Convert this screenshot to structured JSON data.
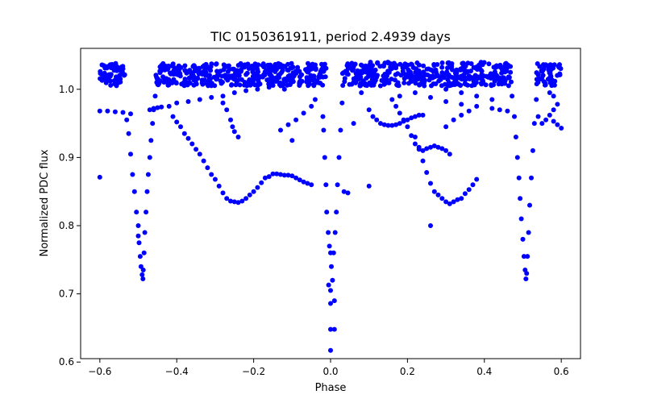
{
  "chart_data": {
    "type": "scatter",
    "title": "TIC 0150361911, period 2.4939 days",
    "xlabel": "Phase",
    "ylabel": "Normalized PDC flux",
    "xlim": [
      -0.65,
      0.65
    ],
    "ylim": [
      0.605,
      1.06
    ],
    "x_ticks": [
      -0.6,
      -0.4,
      -0.2,
      0.0,
      0.2,
      0.4,
      0.6
    ],
    "x_tick_labels": [
      "−0.6",
      "−0.4",
      "−0.2",
      "0.0",
      "0.2",
      "0.4",
      "0.6"
    ],
    "y_ticks": [
      0.6,
      0.7,
      0.8,
      0.9,
      1.0
    ],
    "y_tick_labels": [
      "0.6",
      "0.7",
      "0.8",
      "0.9",
      "1.0"
    ],
    "grid": false,
    "legend": "none",
    "marker_color": "#0000ff",
    "series": [
      {
        "values": [
          [
            -0.6,
            0.871
          ],
          [
            -0.6,
            0.968
          ],
          [
            -0.58,
            0.968
          ],
          [
            -0.56,
            0.967
          ],
          [
            -0.54,
            0.966
          ],
          [
            -0.52,
            0.964
          ],
          [
            -0.55,
            1.01
          ],
          [
            -0.58,
            1.02
          ],
          [
            -0.54,
            1.03
          ],
          [
            -0.59,
            1.035
          ],
          [
            -0.53,
            0.955
          ],
          [
            -0.525,
            0.935
          ],
          [
            -0.52,
            0.905
          ],
          [
            -0.515,
            0.875
          ],
          [
            -0.51,
            0.85
          ],
          [
            -0.505,
            0.82
          ],
          [
            -0.5,
            0.8
          ],
          [
            -0.5,
            0.785
          ],
          [
            -0.498,
            0.775
          ],
          [
            -0.495,
            0.755
          ],
          [
            -0.493,
            0.74
          ],
          [
            -0.49,
            0.728
          ],
          [
            -0.488,
            0.722
          ],
          [
            -0.487,
            0.735
          ],
          [
            -0.485,
            0.76
          ],
          [
            -0.483,
            0.79
          ],
          [
            -0.48,
            0.82
          ],
          [
            -0.477,
            0.85
          ],
          [
            -0.474,
            0.875
          ],
          [
            -0.47,
            0.9
          ],
          [
            -0.467,
            0.925
          ],
          [
            -0.463,
            0.95
          ],
          [
            -0.46,
            0.97
          ],
          [
            -0.456,
            0.99
          ],
          [
            -0.452,
            1.01
          ],
          [
            -0.47,
            0.97
          ],
          [
            -0.46,
            0.972
          ],
          [
            -0.45,
            0.973
          ],
          [
            -0.44,
            0.974
          ],
          [
            -0.42,
            0.975
          ],
          [
            -0.41,
            0.96
          ],
          [
            -0.4,
            0.952
          ],
          [
            -0.39,
            0.945
          ],
          [
            -0.38,
            0.935
          ],
          [
            -0.37,
            0.928
          ],
          [
            -0.36,
            0.92
          ],
          [
            -0.35,
            0.912
          ],
          [
            -0.34,
            0.905
          ],
          [
            -0.33,
            0.895
          ],
          [
            -0.32,
            0.885
          ],
          [
            -0.31,
            0.875
          ],
          [
            -0.3,
            0.868
          ],
          [
            -0.29,
            0.858
          ],
          [
            -0.28,
            0.848
          ],
          [
            -0.27,
            0.84
          ],
          [
            -0.26,
            0.836
          ],
          [
            -0.25,
            0.835
          ],
          [
            -0.24,
            0.834
          ],
          [
            -0.23,
            0.836
          ],
          [
            -0.22,
            0.84
          ],
          [
            -0.21,
            0.845
          ],
          [
            -0.2,
            0.85
          ],
          [
            -0.19,
            0.856
          ],
          [
            -0.18,
            0.863
          ],
          [
            -0.17,
            0.87
          ],
          [
            -0.16,
            0.872
          ],
          [
            -0.15,
            0.876
          ],
          [
            -0.14,
            0.876
          ],
          [
            -0.13,
            0.875
          ],
          [
            -0.12,
            0.874
          ],
          [
            -0.11,
            0.874
          ],
          [
            -0.1,
            0.873
          ],
          [
            -0.09,
            0.87
          ],
          [
            -0.08,
            0.867
          ],
          [
            -0.07,
            0.864
          ],
          [
            -0.06,
            0.862
          ],
          [
            -0.05,
            0.86
          ],
          [
            -0.4,
            0.98
          ],
          [
            -0.37,
            0.982
          ],
          [
            -0.34,
            0.985
          ],
          [
            -0.31,
            0.988
          ],
          [
            -0.28,
            0.99
          ],
          [
            -0.25,
            0.995
          ],
          [
            -0.22,
            0.998
          ],
          [
            -0.19,
            1.0
          ],
          [
            -0.16,
            1.003
          ],
          [
            -0.12,
            1.0
          ],
          [
            -0.28,
            0.98
          ],
          [
            -0.27,
            0.97
          ],
          [
            -0.26,
            0.955
          ],
          [
            -0.255,
            0.945
          ],
          [
            -0.25,
            0.938
          ],
          [
            -0.24,
            0.93
          ],
          [
            -0.13,
            0.94
          ],
          [
            -0.11,
            0.948
          ],
          [
            -0.09,
            0.955
          ],
          [
            -0.07,
            0.965
          ],
          [
            -0.05,
            0.975
          ],
          [
            -0.04,
            0.985
          ],
          [
            -0.1,
            0.925
          ],
          [
            -0.02,
            0.96
          ],
          [
            -0.018,
            0.94
          ],
          [
            -0.015,
            0.9
          ],
          [
            -0.012,
            0.86
          ],
          [
            -0.01,
            0.82
          ],
          [
            -0.006,
            0.79
          ],
          [
            -0.003,
            0.77
          ],
          [
            0.0,
            0.76
          ],
          [
            0.002,
            0.74
          ],
          [
            0.005,
            0.72
          ],
          [
            0.0,
            0.705
          ],
          [
            -0.005,
            0.713
          ],
          [
            0.0,
            0.686
          ],
          [
            0.01,
            0.69
          ],
          [
            0.0,
            0.648
          ],
          [
            0.01,
            0.648
          ],
          [
            0.0,
            0.617
          ],
          [
            0.008,
            0.76
          ],
          [
            0.012,
            0.79
          ],
          [
            0.015,
            0.82
          ],
          [
            0.018,
            0.86
          ],
          [
            0.022,
            0.9
          ],
          [
            0.026,
            0.94
          ],
          [
            0.03,
            0.98
          ],
          [
            0.035,
            0.85
          ],
          [
            0.045,
            0.848
          ],
          [
            0.06,
            0.95
          ],
          [
            0.08,
            0.995
          ],
          [
            0.1,
            0.858
          ],
          [
            0.1,
            0.97
          ],
          [
            0.11,
            0.96
          ],
          [
            0.12,
            0.955
          ],
          [
            0.13,
            0.95
          ],
          [
            0.14,
            0.948
          ],
          [
            0.15,
            0.947
          ],
          [
            0.16,
            0.947
          ],
          [
            0.17,
            0.948
          ],
          [
            0.18,
            0.95
          ],
          [
            0.19,
            0.953
          ],
          [
            0.2,
            0.955
          ],
          [
            0.21,
            0.958
          ],
          [
            0.22,
            0.96
          ],
          [
            0.23,
            0.962
          ],
          [
            0.24,
            0.962
          ],
          [
            0.16,
            0.985
          ],
          [
            0.17,
            0.975
          ],
          [
            0.18,
            0.965
          ],
          [
            0.19,
            0.955
          ],
          [
            0.2,
            0.945
          ],
          [
            0.21,
            0.932
          ],
          [
            0.22,
            0.92
          ],
          [
            0.23,
            0.912
          ],
          [
            0.24,
            0.91
          ],
          [
            0.25,
            0.913
          ],
          [
            0.26,
            0.915
          ],
          [
            0.27,
            0.917
          ],
          [
            0.28,
            0.915
          ],
          [
            0.29,
            0.913
          ],
          [
            0.3,
            0.91
          ],
          [
            0.31,
            0.905
          ],
          [
            0.22,
            0.93
          ],
          [
            0.23,
            0.915
          ],
          [
            0.24,
            0.895
          ],
          [
            0.25,
            0.878
          ],
          [
            0.26,
            0.862
          ],
          [
            0.27,
            0.85
          ],
          [
            0.28,
            0.845
          ],
          [
            0.29,
            0.84
          ],
          [
            0.3,
            0.835
          ],
          [
            0.31,
            0.832
          ],
          [
            0.32,
            0.835
          ],
          [
            0.33,
            0.838
          ],
          [
            0.34,
            0.84
          ],
          [
            0.35,
            0.847
          ],
          [
            0.36,
            0.853
          ],
          [
            0.37,
            0.86
          ],
          [
            0.38,
            0.868
          ],
          [
            0.26,
            0.8
          ],
          [
            0.3,
            0.945
          ],
          [
            0.32,
            0.955
          ],
          [
            0.34,
            0.962
          ],
          [
            0.36,
            0.968
          ],
          [
            0.18,
            0.99
          ],
          [
            0.22,
            0.995
          ],
          [
            0.26,
            0.988
          ],
          [
            0.3,
            0.982
          ],
          [
            0.34,
            0.978
          ],
          [
            0.38,
            0.975
          ],
          [
            0.42,
            0.972
          ],
          [
            0.46,
            0.968
          ],
          [
            0.44,
            0.97
          ],
          [
            0.3,
            1.0
          ],
          [
            0.34,
            0.995
          ],
          [
            0.38,
            0.99
          ],
          [
            0.42,
            0.985
          ],
          [
            0.472,
            0.99
          ],
          [
            0.478,
            0.96
          ],
          [
            0.482,
            0.93
          ],
          [
            0.486,
            0.9
          ],
          [
            0.49,
            0.87
          ],
          [
            0.493,
            0.84
          ],
          [
            0.496,
            0.81
          ],
          [
            0.5,
            0.78
          ],
          [
            0.503,
            0.755
          ],
          [
            0.506,
            0.735
          ],
          [
            0.508,
            0.722
          ],
          [
            0.51,
            0.73
          ],
          [
            0.512,
            0.755
          ],
          [
            0.515,
            0.79
          ],
          [
            0.518,
            0.83
          ],
          [
            0.522,
            0.87
          ],
          [
            0.526,
            0.91
          ],
          [
            0.53,
            0.95
          ],
          [
            0.535,
            0.985
          ],
          [
            0.54,
            0.96
          ],
          [
            0.55,
            0.95
          ],
          [
            0.56,
            0.955
          ],
          [
            0.57,
            0.962
          ],
          [
            0.58,
            0.97
          ],
          [
            0.59,
            0.978
          ],
          [
            0.58,
            0.953
          ],
          [
            0.59,
            0.948
          ],
          [
            0.6,
            0.943
          ],
          [
            0.57,
            0.995
          ],
          [
            0.58,
            0.99
          ]
        ]
      },
      {
        "bands": [
          {
            "x_start": -0.6,
            "x_end": -0.535,
            "y_min": 1.005,
            "y_max": 1.038
          },
          {
            "x_start": -0.455,
            "x_end": -0.01,
            "y_min": 1.005,
            "y_max": 1.038
          },
          {
            "x_start": 0.03,
            "x_end": 0.47,
            "y_min": 1.005,
            "y_max": 1.04
          },
          {
            "x_start": 0.535,
            "x_end": 0.6,
            "y_min": 1.005,
            "y_max": 1.038
          }
        ]
      }
    ]
  }
}
